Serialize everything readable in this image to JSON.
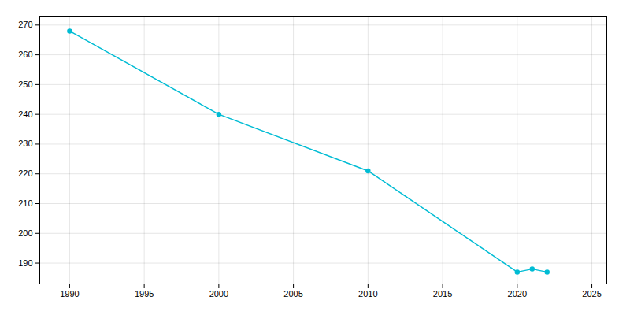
{
  "chart_data": {
    "type": "line",
    "x": [
      1990,
      2000,
      2010,
      2020,
      2021,
      2022
    ],
    "values": [
      268,
      240,
      221,
      187,
      188,
      187
    ],
    "color": "#00bcd4",
    "marker": "circle",
    "xlim": [
      1988,
      2026
    ],
    "ylim": [
      183,
      273
    ],
    "xticks": [
      1990,
      1995,
      2000,
      2005,
      2010,
      2015,
      2020,
      2025
    ],
    "yticks": [
      190,
      200,
      210,
      220,
      230,
      240,
      250,
      260,
      270
    ],
    "grid": true
  }
}
